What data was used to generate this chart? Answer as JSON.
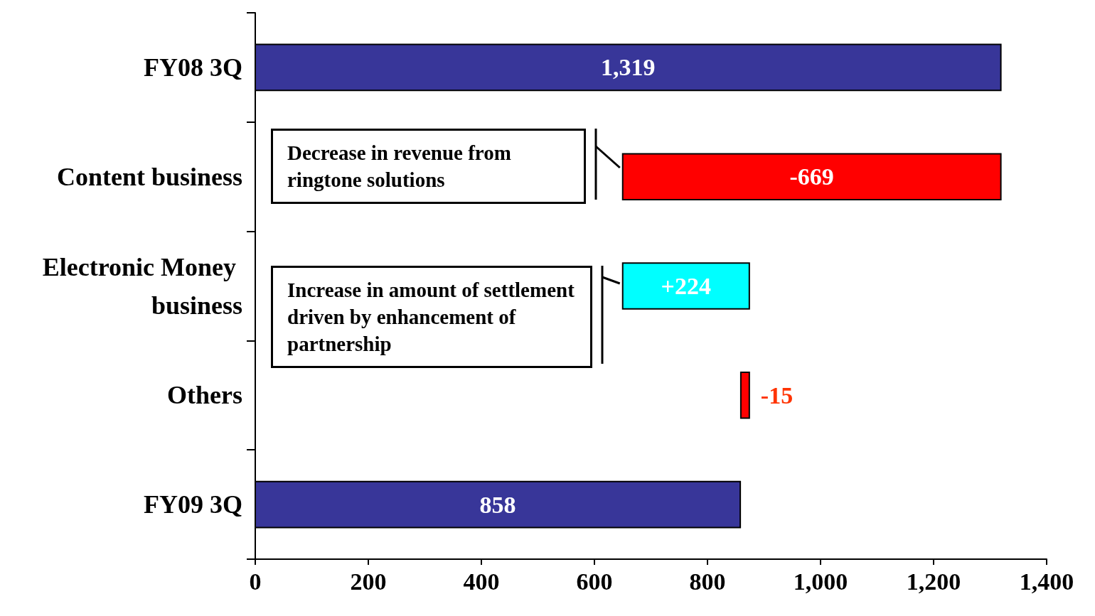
{
  "chart_data": {
    "type": "bar",
    "orientation": "horizontal",
    "categories": [
      "FY08 3Q",
      "Content business",
      "Electronic Money business",
      "Others",
      "FY09 3Q"
    ],
    "values": [
      1319,
      -669,
      224,
      -15,
      858
    ],
    "base": [
      0,
      1319,
      650,
      874,
      0
    ],
    "colors": [
      "#383699",
      "#ff0000",
      "#00ffff",
      "#ff0000",
      "#383699"
    ],
    "value_labels": [
      "1,319",
      "-669",
      "+224",
      "-15",
      "858"
    ],
    "xlim": [
      0,
      1400
    ],
    "xticks": [
      0,
      200,
      400,
      600,
      800,
      {
        "value": 1000,
        "label": "1,000"
      },
      {
        "value": 1200,
        "label": "1,200"
      },
      {
        "value": 1400,
        "label": "1,400"
      }
    ],
    "grid": false,
    "annotations": [
      "Decrease in revenue from ringtone solutions",
      "Increase in amount of settlement driven by enhancement of partnership"
    ]
  }
}
